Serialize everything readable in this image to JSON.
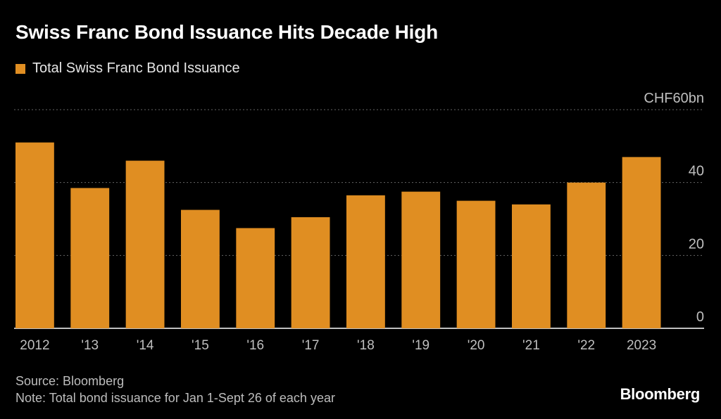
{
  "colors": {
    "bar": "#E08E22",
    "grid": "#666666",
    "axis": "#bfbfbf",
    "baseline": "#ffffff"
  },
  "chart_data": {
    "type": "bar",
    "title": "Swiss Franc Bond Issuance Hits Decade High",
    "legend": [
      "Total Swiss Franc Bond Issuance"
    ],
    "categories": [
      "2012",
      "'13",
      "'14",
      "'15",
      "'16",
      "'17",
      "'18",
      "'19",
      "'20",
      "'21",
      "'22",
      "2023"
    ],
    "series": [
      {
        "name": "Total Swiss Franc Bond Issuance",
        "values": [
          51,
          38.5,
          46,
          32.5,
          27.5,
          30.5,
          36.5,
          37.5,
          35,
          34,
          40,
          47
        ]
      }
    ],
    "ylim": [
      0,
      60
    ],
    "yticks": [
      {
        "value": 60,
        "label": "CHF60bn"
      },
      {
        "value": 40,
        "label": "40"
      },
      {
        "value": 20,
        "label": "20"
      },
      {
        "value": 0,
        "label": "0"
      }
    ],
    "grid": true,
    "xlabel": "",
    "ylabel": ""
  },
  "footer": {
    "source": "Source: Bloomberg",
    "note": "Note: Total bond issuance for Jan 1-Sept 26 of each year"
  },
  "brand": "Bloomberg"
}
